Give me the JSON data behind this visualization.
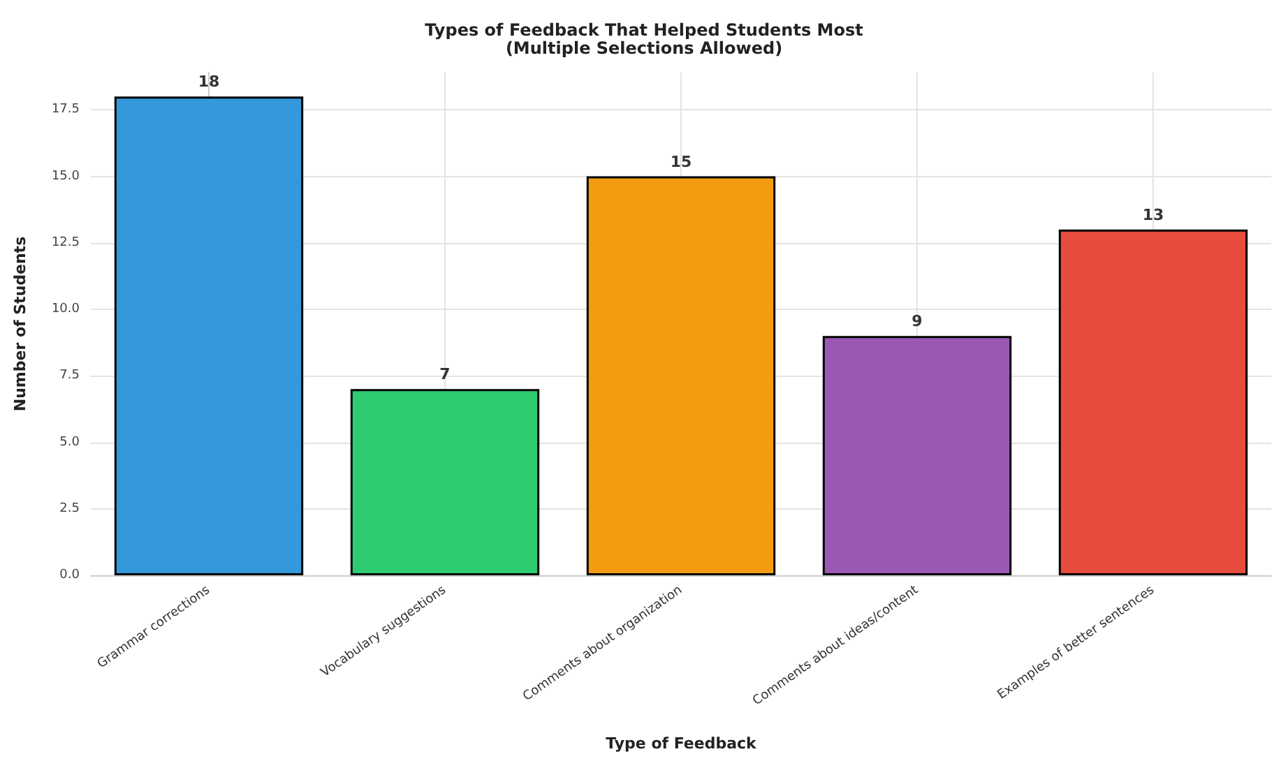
{
  "chart_data": {
    "type": "bar",
    "title": "Types of Feedback That Helped Students Most\n(Multiple Selections Allowed)",
    "xlabel": "Type of Feedback",
    "ylabel": "Number of Students",
    "categories": [
      "Grammar corrections",
      "Vocabulary suggestions",
      "Comments about organization",
      "Comments about ideas/content",
      "Examples of better sentences"
    ],
    "values": [
      18,
      7,
      15,
      9,
      13
    ],
    "colors": [
      "#3498db",
      "#2ecc71",
      "#f39c12",
      "#9b59b6",
      "#e74c3c"
    ],
    "ylim": [
      0,
      18.9
    ],
    "yticks": [
      {
        "value": 0,
        "label": "0.0"
      },
      {
        "value": 2.5,
        "label": "2.5"
      },
      {
        "value": 5,
        "label": "5.0"
      },
      {
        "value": 7.5,
        "label": "7.5"
      },
      {
        "value": 10,
        "label": "10.0"
      },
      {
        "value": 12.5,
        "label": "12.5"
      },
      {
        "value": 15,
        "label": "15.0"
      },
      {
        "value": 17.5,
        "label": "17.5"
      }
    ],
    "data_labels": true,
    "grid": true
  }
}
